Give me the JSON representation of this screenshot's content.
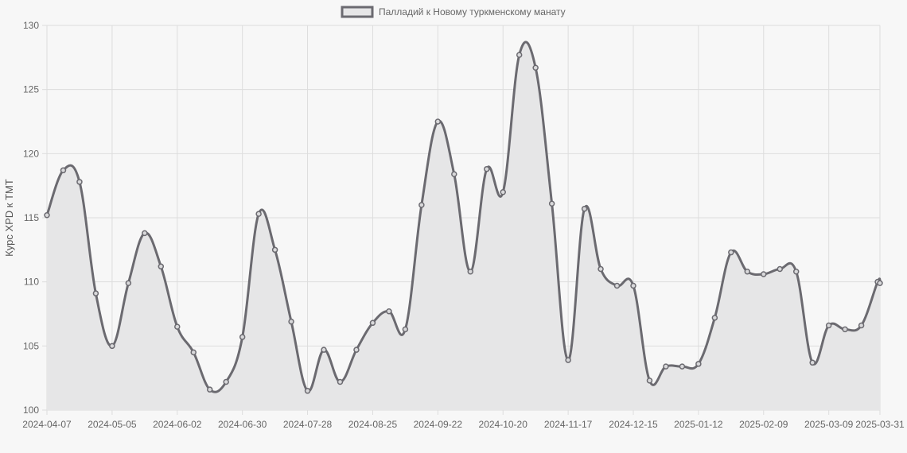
{
  "chart_data": {
    "type": "line",
    "legend": {
      "label": "Палладий к Новому туркменскому манату",
      "position": "top"
    },
    "ylabel": "Курс XPD к TMT",
    "xlabel": "",
    "ylim": [
      100,
      130
    ],
    "y_ticks": [
      "100",
      "105",
      "110",
      "115",
      "120",
      "125",
      "130"
    ],
    "x_ticks": [
      "2024-04-07",
      "2024-05-05",
      "2024-06-02",
      "2024-06-30",
      "2024-07-28",
      "2024-08-25",
      "2024-09-22",
      "2024-10-20",
      "2024-11-17",
      "2024-12-15",
      "2025-01-12",
      "2025-02-09",
      "2025-03-09",
      "2025-03-31"
    ],
    "grid": true,
    "fill": true,
    "colors": {
      "line": "#6b6a70",
      "fill": "#e6e6e7",
      "grid": "#dddddd",
      "background": "#f7f7f7"
    },
    "series": [
      {
        "name": "Палладий к Новому туркменскому манату",
        "x": [
          "2024-04-07",
          "2024-04-14",
          "2024-04-21",
          "2024-04-28",
          "2024-05-05",
          "2024-05-12",
          "2024-05-19",
          "2024-05-26",
          "2024-06-02",
          "2024-06-09",
          "2024-06-16",
          "2024-06-23",
          "2024-06-30",
          "2024-07-07",
          "2024-07-14",
          "2024-07-21",
          "2024-07-28",
          "2024-08-04",
          "2024-08-11",
          "2024-08-18",
          "2024-08-25",
          "2024-09-01",
          "2024-09-08",
          "2024-09-15",
          "2024-09-22",
          "2024-09-29",
          "2024-10-06",
          "2024-10-13",
          "2024-10-20",
          "2024-10-27",
          "2024-11-03",
          "2024-11-10",
          "2024-11-17",
          "2024-11-24",
          "2024-12-01",
          "2024-12-08",
          "2024-12-15",
          "2024-12-22",
          "2024-12-29",
          "2025-01-05",
          "2025-01-12",
          "2025-01-19",
          "2025-01-26",
          "2025-02-02",
          "2025-02-09",
          "2025-02-16",
          "2025-02-23",
          "2025-03-02",
          "2025-03-09",
          "2025-03-16",
          "2025-03-23",
          "2025-03-30",
          "2025-03-31"
        ],
        "values": [
          115.2,
          118.7,
          117.8,
          109.1,
          105.0,
          109.9,
          113.8,
          111.2,
          106.5,
          104.5,
          101.6,
          102.2,
          105.7,
          115.3,
          112.5,
          106.9,
          101.5,
          104.7,
          102.2,
          104.7,
          106.8,
          107.7,
          106.3,
          116.0,
          122.5,
          118.4,
          110.8,
          118.8,
          117.0,
          127.7,
          126.7,
          116.1,
          103.9,
          115.7,
          111.0,
          109.7,
          109.7,
          102.3,
          103.4,
          103.4,
          103.6,
          107.2,
          112.3,
          110.8,
          110.6,
          111.0,
          110.8,
          103.7,
          106.6,
          106.3,
          106.6,
          110.0,
          109.9
        ]
      }
    ]
  }
}
